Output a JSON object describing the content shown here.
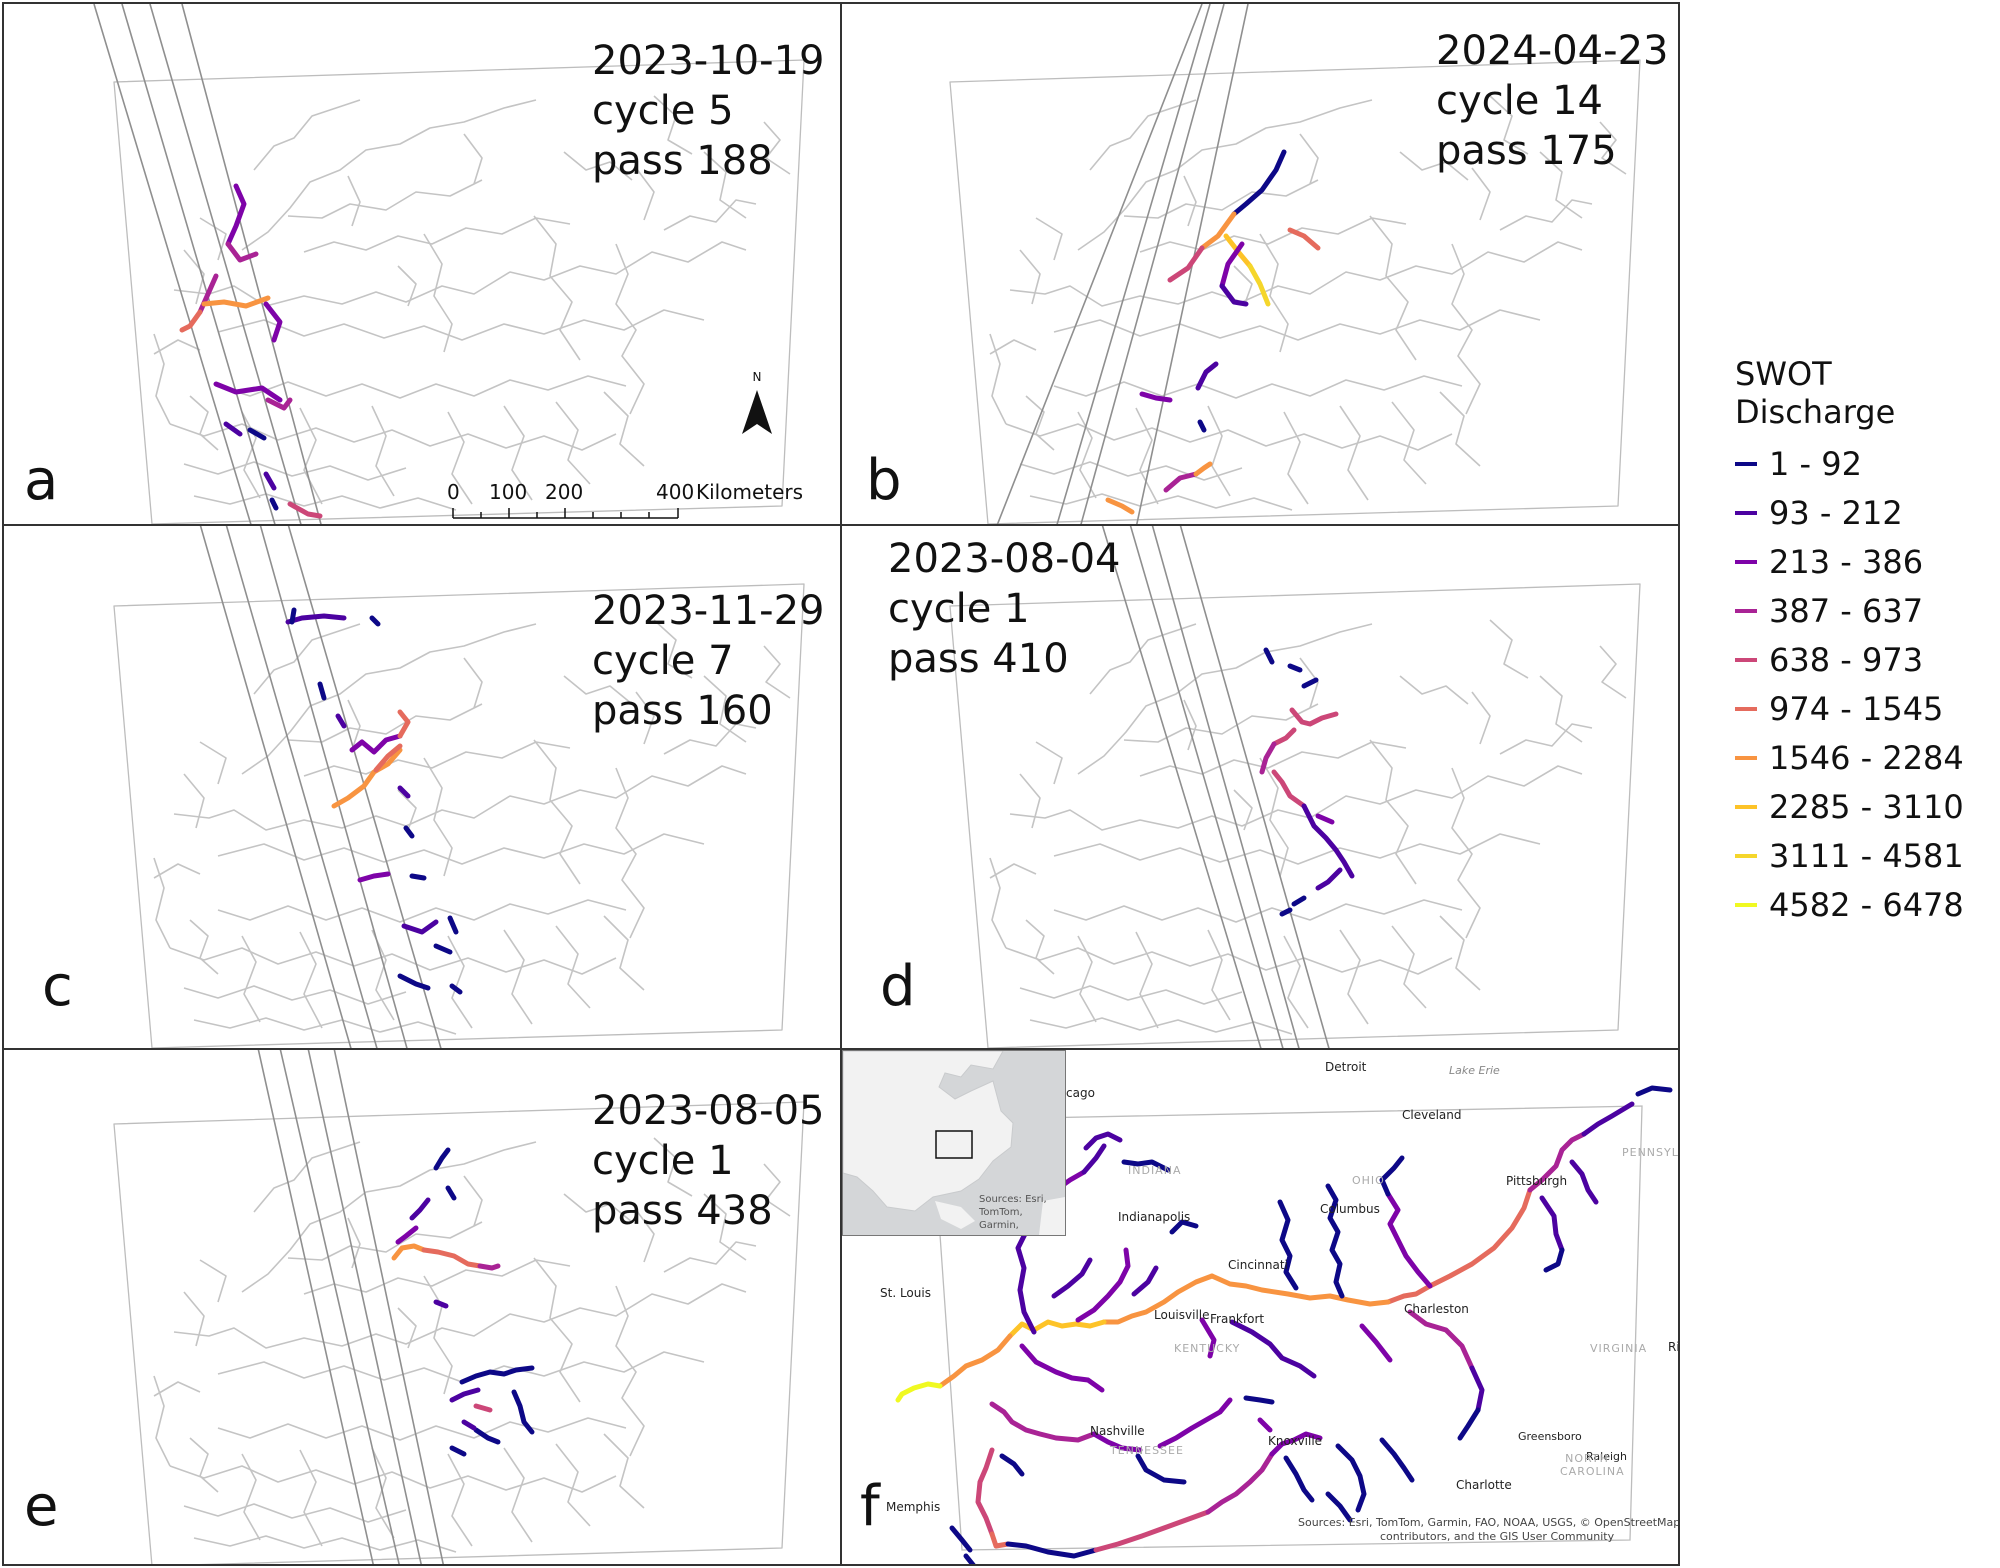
{
  "figure": {
    "legend": {
      "title": "SWOT Discharge",
      "classes": [
        {
          "label": "1 - 92",
          "color": "#0d0887"
        },
        {
          "label": "93 - 212",
          "color": "#4c02a1"
        },
        {
          "label": "213 - 386",
          "color": "#7e03a8"
        },
        {
          "label": "387 - 637",
          "color": "#a92395"
        },
        {
          "label": "638 - 973",
          "color": "#cc4778"
        },
        {
          "label": "974 - 1545",
          "color": "#e56b5d"
        },
        {
          "label": "1546 - 2284",
          "color": "#f89441"
        },
        {
          "label": "2285 - 3110",
          "color": "#fdc328"
        },
        {
          "label": "3111 - 4581",
          "color": "#f5d62b"
        },
        {
          "label": "4582 - 6478",
          "color": "#f0f921"
        }
      ]
    },
    "panels": [
      {
        "letter": "a",
        "date": "2023-10-19",
        "cycle": "cycle 5",
        "pass": "pass 188"
      },
      {
        "letter": "b",
        "date": "2024-04-23",
        "cycle": "cycle 14",
        "pass": "pass 175"
      },
      {
        "letter": "c",
        "date": "2023-11-29",
        "cycle": "cycle 7",
        "pass": "pass 160"
      },
      {
        "letter": "d",
        "date": "2023-08-04",
        "cycle": "cycle 1",
        "pass": "pass 410"
      },
      {
        "letter": "e",
        "date": "2023-08-05",
        "cycle": "cycle 1",
        "pass": "pass 438"
      },
      {
        "letter": "f"
      }
    ],
    "north_arrow": "N",
    "scale_bar": {
      "ticks": [
        "0",
        "100",
        "200",
        "400"
      ],
      "unit": "Kilometers"
    },
    "panel_f": {
      "cities": [
        "Detroit",
        "Lake Erie",
        "Cleveland",
        "cago",
        "Indianapolis",
        "Columbus",
        "Pittsburgh",
        "Cincinnati",
        "St. Louis",
        "Louisville",
        "Frankfort",
        "Charleston",
        "Nashville",
        "Knoxville",
        "Greensboro",
        "Raleigh",
        "Charlotte",
        "Memphis",
        "Ri"
      ],
      "states": [
        "INDIANA",
        "OHIO",
        "PENNSYL",
        "KENTUCKY",
        "VIRGINIA",
        "TENNESSEE",
        "NORTH CAROLINA"
      ],
      "inset_attribution": "Sources: Esri, TomTom, Garmin,",
      "attribution_line1": "Sources: Esri, TomTom, Garmin, FAO, NOAA, USGS, © OpenStreetMap",
      "attribution_line2": "contributors, and the GIS User Community"
    }
  }
}
